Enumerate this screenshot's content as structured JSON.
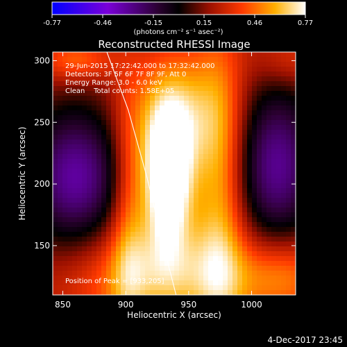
{
  "chart_data": {
    "type": "heatmap",
    "title": "Reconstructed RHESSI Image",
    "xlabel": "Heliocentric X (arcsec)",
    "ylabel": "Heliocentric Y (arcsec)",
    "xlim": [
      842,
      1035
    ],
    "ylim": [
      110,
      307
    ],
    "x_ticks": [
      850,
      900,
      950,
      1000
    ],
    "y_ticks": [
      150,
      200,
      250,
      300
    ],
    "colorbar": {
      "min": -0.77,
      "max": 0.77,
      "ticks": [
        "-0.77",
        "-0.46",
        "-0.15",
        "0.15",
        "0.46",
        "0.77"
      ],
      "label": "(photons cm⁻² s⁻¹ asec⁻²)"
    },
    "annotations": [
      "29-Jun-2015 17:22:42.000 to 17:32:42.000",
      "Detectors: 3F 5F 6F 7F 8F 9F, Att 0",
      "Energy Range: 3.0 - 6.0 keV",
      "Clean    Total counts: 1.58E+05"
    ],
    "peak_label": "Position of Peak = [933,205]",
    "sources": [
      {
        "x": 933,
        "y": 205,
        "amp": 0.77,
        "sx": 14,
        "sy": 40
      },
      {
        "x": 943,
        "y": 258,
        "amp": 0.35,
        "sx": 26,
        "sy": 35
      },
      {
        "x": 930,
        "y": 125,
        "amp": 0.4,
        "sx": 50,
        "sy": 30
      },
      {
        "x": 975,
        "y": 190,
        "amp": 0.35,
        "sx": 14,
        "sy": 90
      },
      {
        "x": 902,
        "y": 175,
        "amp": 0.25,
        "sx": 10,
        "sy": 70
      },
      {
        "x": 860,
        "y": 205,
        "amp": -0.55,
        "sx": 28,
        "sy": 42
      },
      {
        "x": 1020,
        "y": 215,
        "amp": -0.52,
        "sx": 24,
        "sy": 48
      },
      {
        "x": 860,
        "y": 300,
        "amp": 0.25,
        "sx": 20,
        "sy": 12
      },
      {
        "x": 1030,
        "y": 300,
        "amp": 0.15,
        "sx": 20,
        "sy": 15
      },
      {
        "x": 1025,
        "y": 125,
        "amp": 0.28,
        "sx": 25,
        "sy": 22
      }
    ],
    "baseline": 0.22,
    "limb_curve": [
      [
        885,
        307
      ],
      [
        902,
        260
      ],
      [
        917,
        205
      ],
      [
        930,
        150
      ],
      [
        940,
        110
      ]
    ]
  },
  "footer": {
    "date": "4-Dec-2017 23:45"
  }
}
